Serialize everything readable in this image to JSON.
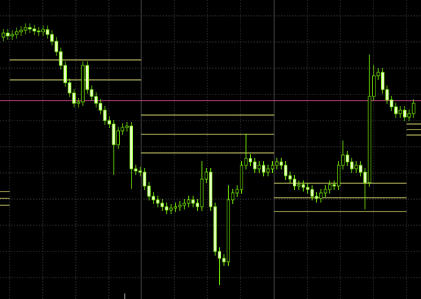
{
  "chart_data": {
    "type": "candlestick",
    "ylim": [
      0,
      434
    ],
    "grid": true,
    "yticks": [
      411,
      373,
      335,
      297,
      259,
      221,
      183,
      145,
      107,
      69,
      31
    ],
    "up_color": "#7cfc00",
    "down_color": "#e8ffc8",
    "open": [
      380,
      386,
      382,
      384,
      388,
      390,
      394,
      392,
      389,
      388,
      391,
      384,
      374,
      359,
      339,
      314,
      299,
      284,
      286,
      339,
      304,
      294,
      284,
      274,
      259,
      254,
      224,
      244,
      249,
      251,
      189,
      186,
      184,
      164,
      149,
      144,
      139,
      134,
      129,
      132,
      134,
      136,
      139,
      144,
      139,
      134,
      174,
      184,
      134,
      69,
      59,
      54,
      144,
      154,
      159,
      194,
      204,
      199,
      189,
      194,
      184,
      189,
      194,
      199,
      194,
      179,
      174,
      164,
      166,
      162,
      159,
      149,
      146,
      154,
      159,
      166,
      164,
      194,
      209,
      199,
      189,
      194,
      184,
      169,
      294,
      324,
      329,
      304,
      289,
      279,
      269,
      274,
      264,
      269
    ],
    "high": [
      392,
      392,
      390,
      394,
      396,
      400,
      400,
      398,
      395,
      397,
      397,
      390,
      380,
      365,
      345,
      320,
      305,
      292,
      345,
      345,
      310,
      300,
      290,
      280,
      265,
      260,
      250,
      255,
      257,
      257,
      195,
      192,
      190,
      170,
      155,
      150,
      145,
      140,
      138,
      140,
      142,
      145,
      150,
      150,
      145,
      200,
      190,
      190,
      140,
      75,
      65,
      165,
      160,
      165,
      200,
      240,
      210,
      205,
      200,
      200,
      195,
      200,
      205,
      205,
      200,
      185,
      180,
      172,
      172,
      168,
      165,
      155,
      160,
      165,
      172,
      172,
      200,
      230,
      215,
      205,
      200,
      200,
      190,
      355,
      340,
      335,
      335,
      310,
      295,
      285,
      280,
      280,
      275,
      290
    ],
    "low": [
      374,
      376,
      376,
      378,
      382,
      384,
      386,
      383,
      382,
      382,
      378,
      368,
      353,
      333,
      308,
      293,
      278,
      278,
      280,
      298,
      288,
      278,
      268,
      253,
      248,
      180,
      218,
      238,
      243,
      160,
      180,
      178,
      158,
      143,
      138,
      133,
      128,
      123,
      123,
      126,
      128,
      130,
      133,
      133,
      128,
      128,
      168,
      128,
      63,
      20,
      48,
      48,
      138,
      148,
      153,
      188,
      193,
      183,
      183,
      178,
      178,
      183,
      188,
      188,
      173,
      168,
      158,
      158,
      156,
      153,
      143,
      140,
      140,
      148,
      153,
      158,
      158,
      188,
      193,
      183,
      183,
      178,
      130,
      163,
      288,
      318,
      298,
      283,
      273,
      263,
      263,
      258,
      258,
      263
    ],
    "close": [
      386,
      382,
      384,
      388,
      390,
      394,
      392,
      389,
      388,
      391,
      384,
      374,
      359,
      339,
      314,
      299,
      284,
      286,
      339,
      304,
      294,
      284,
      274,
      259,
      254,
      224,
      244,
      249,
      251,
      189,
      186,
      184,
      164,
      149,
      144,
      139,
      134,
      129,
      132,
      134,
      136,
      139,
      144,
      139,
      134,
      174,
      184,
      134,
      69,
      59,
      54,
      144,
      154,
      159,
      194,
      204,
      199,
      189,
      194,
      184,
      189,
      194,
      199,
      194,
      179,
      174,
      164,
      166,
      162,
      159,
      149,
      146,
      154,
      159,
      166,
      164,
      194,
      209,
      199,
      189,
      194,
      184,
      169,
      294,
      324,
      329,
      304,
      289,
      279,
      269,
      274,
      264,
      269,
      284
    ],
    "level_groups": [
      {
        "color": "#ffff80",
        "values": [
          347,
          318
        ]
      },
      {
        "color": "#ffff80",
        "values": [
          267,
          239,
          212
        ]
      },
      {
        "color": "#ffff80",
        "values": [
          168,
          147,
          127
        ]
      },
      {
        "color": "#ffff80",
        "values": [
          156,
          146,
          136
        ]
      },
      {
        "color": "#ffff80",
        "values": [
          254,
          246,
          238
        ]
      },
      {
        "color": "#c04080",
        "values": [
          288
        ]
      }
    ]
  }
}
